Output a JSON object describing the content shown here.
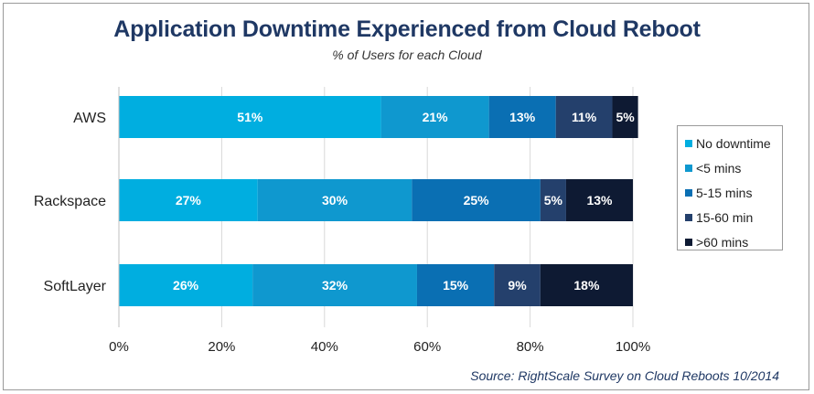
{
  "chart_data": {
    "type": "bar",
    "orientation": "horizontal",
    "stacked": true,
    "title": "Application Downtime Experienced from Cloud Reboot",
    "subtitle": "% of Users for each Cloud",
    "categories": [
      "AWS",
      "Rackspace",
      "SoftLayer"
    ],
    "series": [
      {
        "name": "No downtime",
        "color": "#00aee0",
        "values": [
          51,
          27,
          26
        ]
      },
      {
        "name": "<5 mins",
        "color": "#0f98cf",
        "values": [
          21,
          30,
          32
        ]
      },
      {
        "name": "5-15 mins",
        "color": "#0a6fb3",
        "values": [
          13,
          25,
          15
        ]
      },
      {
        "name": "15-60 min",
        "color": "#24406c",
        "values": [
          11,
          5,
          9
        ]
      },
      {
        "name": ">60 mins",
        "color": "#0e1a33",
        "values": [
          5,
          13,
          18
        ]
      }
    ],
    "xlim": [
      0,
      100
    ],
    "xticks": [
      "0%",
      "20%",
      "40%",
      "60%",
      "80%",
      "100%"
    ],
    "grid": true,
    "legend_position": "right",
    "xlabel": "",
    "ylabel": "",
    "source": "Source: RightScale Survey on Cloud Reboots 10/2014"
  }
}
